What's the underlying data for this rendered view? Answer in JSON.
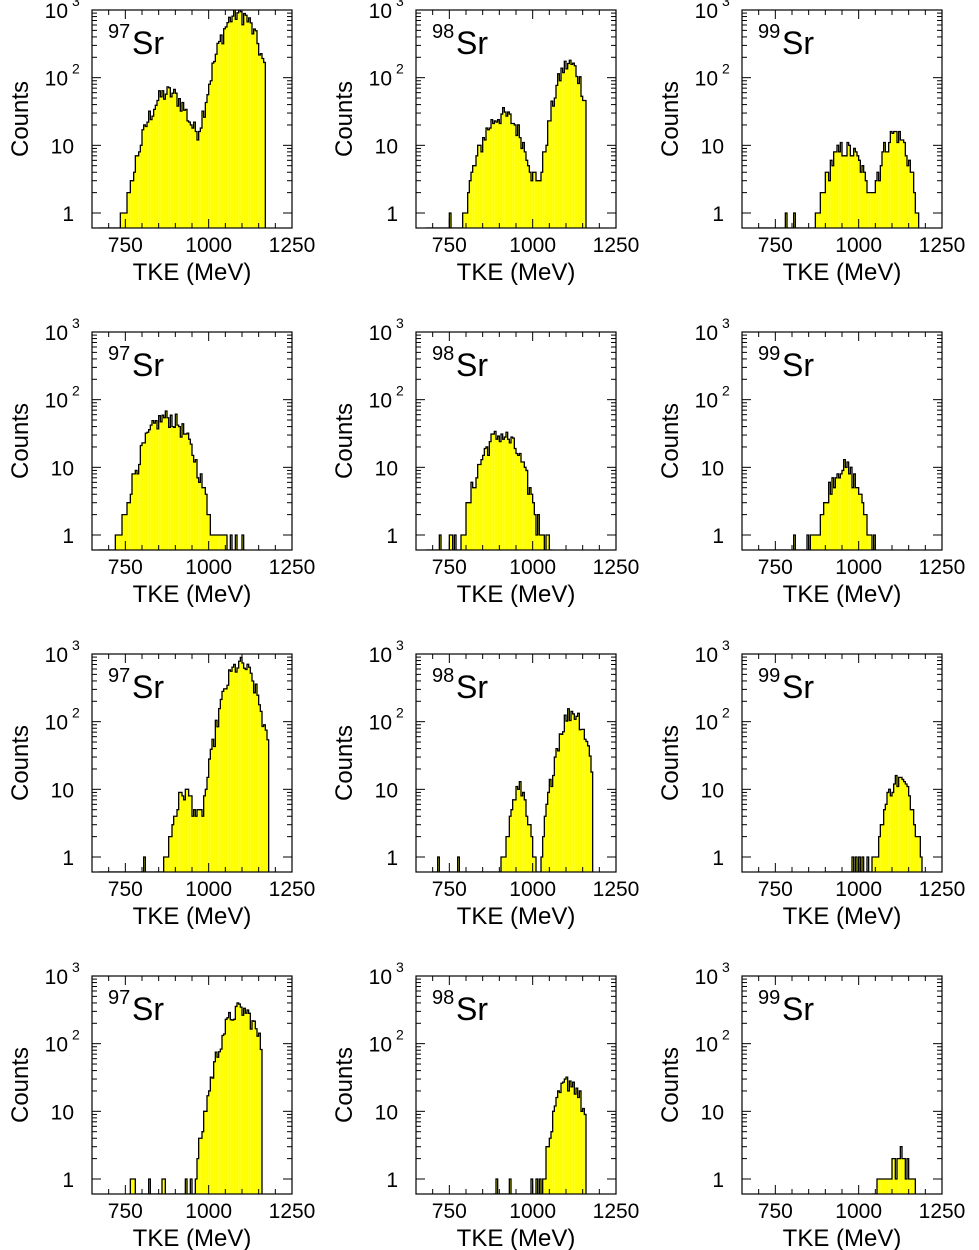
{
  "colors": {
    "fill": "#ffff00",
    "line": "#000000",
    "background": "#ffffff"
  },
  "chart_data": {
    "type": "histogram",
    "layout": "4 rows x 3 columns of panels",
    "xlabel": "TKE (MeV)",
    "ylabel": "Counts",
    "xlim": [
      650,
      1250
    ],
    "ylim": [
      0.6,
      1000
    ],
    "yscale": "log",
    "x_ticks": [
      "750",
      "1000",
      "1250"
    ],
    "y_ticks": [
      {
        "base": "10",
        "exp": "3"
      },
      {
        "base": "10",
        "exp": "2"
      },
      {
        "base": "10",
        "exp": ""
      },
      {
        "base": "1",
        "exp": ""
      }
    ],
    "panels": [
      {
        "mass": "97",
        "element": "Sr",
        "peaks": [
          {
            "c": 880,
            "amp": 60,
            "sigma": 45
          },
          {
            "c": 1090,
            "amp": 900,
            "sigma": 40
          }
        ],
        "range": [
          670,
          1170
        ]
      },
      {
        "mass": "98",
        "element": "Sr",
        "peaks": [
          {
            "c": 910,
            "amp": 28,
            "sigma": 45
          },
          {
            "c": 1110,
            "amp": 160,
            "sigma": 30
          }
        ],
        "range": [
          680,
          1160
        ]
      },
      {
        "mass": "99",
        "element": "Sr",
        "peaks": [
          {
            "c": 960,
            "amp": 9,
            "sigma": 40
          },
          {
            "c": 1110,
            "amp": 15,
            "sigma": 30
          }
        ],
        "range": [
          700,
          1180
        ]
      },
      {
        "mass": "97",
        "element": "Sr",
        "peaks": [
          {
            "c": 875,
            "amp": 55,
            "sigma": 50
          }
        ],
        "range": [
          670,
          1110
        ]
      },
      {
        "mass": "98",
        "element": "Sr",
        "peaks": [
          {
            "c": 905,
            "amp": 30,
            "sigma": 45
          }
        ],
        "range": [
          680,
          1060
        ]
      },
      {
        "mass": "99",
        "element": "Sr",
        "peaks": [
          {
            "c": 955,
            "amp": 10,
            "sigma": 35
          }
        ],
        "range": [
          700,
          1050
        ]
      },
      {
        "mass": "97",
        "element": "Sr",
        "peaks": [
          {
            "c": 930,
            "amp": 9,
            "sigma": 25
          },
          {
            "c": 1095,
            "amp": 700,
            "sigma": 35
          }
        ],
        "range": [
          670,
          1180
        ]
      },
      {
        "mass": "98",
        "element": "Sr",
        "peaks": [
          {
            "c": 960,
            "amp": 10,
            "sigma": 20
          },
          {
            "c": 1120,
            "amp": 140,
            "sigma": 30
          }
        ],
        "range": [
          700,
          1180
        ]
      },
      {
        "mass": "99",
        "element": "Sr",
        "peaks": [
          {
            "c": 1120,
            "amp": 14,
            "sigma": 30
          }
        ],
        "range": [
          900,
          1190
        ]
      },
      {
        "mass": "97",
        "element": "Sr",
        "peaks": [
          {
            "c": 1095,
            "amp": 320,
            "sigma": 40
          }
        ],
        "range": [
          760,
          1160
        ]
      },
      {
        "mass": "98",
        "element": "Sr",
        "peaks": [
          {
            "c": 1110,
            "amp": 28,
            "sigma": 30
          }
        ],
        "range": [
          880,
          1160
        ]
      },
      {
        "mass": "99",
        "element": "Sr",
        "peaks": [
          {
            "c": 1120,
            "amp": 2,
            "sigma": 35
          }
        ],
        "range": [
          1040,
          1170
        ]
      }
    ]
  }
}
